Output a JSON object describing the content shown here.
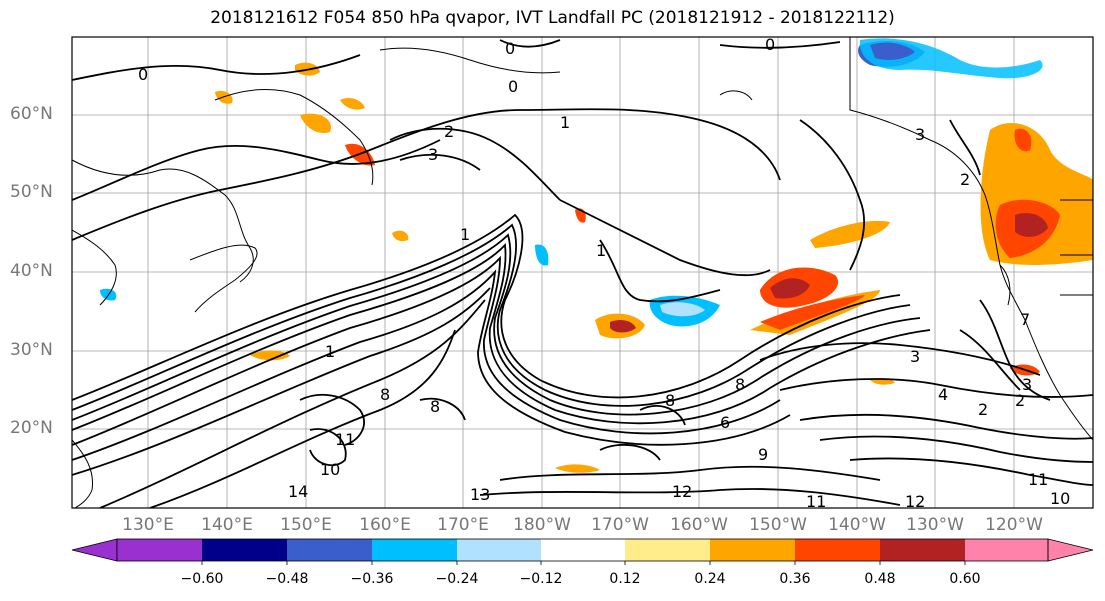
{
  "title": "2018121612 F054 850 hPa qvapor, IVT Landfall PC (2018121912 - 2018122112)",
  "lat_labels": [
    "60°N",
    "50°N",
    "40°N",
    "30°N",
    "20°N"
  ],
  "lon_labels": [
    "130°E",
    "140°E",
    "150°E",
    "160°E",
    "170°E",
    "180°W",
    "170°W",
    "160°W",
    "150°W",
    "140°W",
    "130°W",
    "120°W"
  ],
  "colorbar": {
    "ticks": [
      "−0.60",
      "−0.48",
      "−0.36",
      "−0.24",
      "−0.12",
      "0.12",
      "0.24",
      "0.36",
      "0.48",
      "0.60"
    ],
    "colors": [
      "#9b30d0",
      "#00008b",
      "#3a5fcd",
      "#00bfff",
      "#b0e2ff",
      "#ffffff",
      "#ffec8b",
      "#ffa500",
      "#ff4500",
      "#b22222",
      "#ff82ab"
    ]
  },
  "contour_labels": [
    "0",
    "0",
    "0",
    "0",
    "1",
    "1",
    "2",
    "3",
    "1",
    "1",
    "2",
    "3",
    "4",
    "2",
    "2",
    "3",
    "3",
    "8",
    "8",
    "8",
    "9",
    "11",
    "10",
    "14",
    "13",
    "12",
    "11",
    "12",
    "10",
    "11",
    "6",
    "7",
    "8"
  ]
}
